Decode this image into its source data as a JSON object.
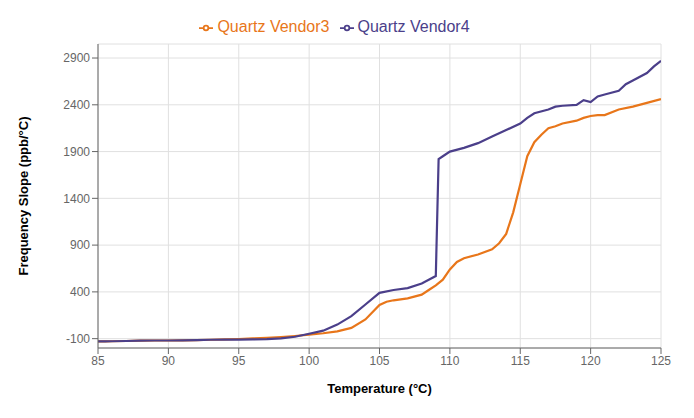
{
  "chart_data": {
    "type": "line",
    "xlabel": "Temperature (°C)",
    "ylabel": "Frequency Slope (ppb/°C)",
    "xlim": [
      85,
      125
    ],
    "ylim": [
      -200,
      3050
    ],
    "xticks": [
      85,
      90,
      95,
      100,
      105,
      110,
      115,
      120,
      125
    ],
    "yticks": [
      -100,
      400,
      900,
      1400,
      1900,
      2400,
      2900
    ],
    "grid": true,
    "legend": "top",
    "series": [
      {
        "name": "Quartz Vendor3",
        "color": "#E8761A",
        "x": [
          85.0,
          85.5,
          86.0,
          87.0,
          88.0,
          89.0,
          90.0,
          91.0,
          92.0,
          93.0,
          94.0,
          95.0,
          96.0,
          97.0,
          98.0,
          99.0,
          100.0,
          101.0,
          102.0,
          103.0,
          104.0,
          105.0,
          105.5,
          106.0,
          107.0,
          108.0,
          108.5,
          109.0,
          109.5,
          110.0,
          110.5,
          111.0,
          112.0,
          113.0,
          113.5,
          114.0,
          114.5,
          115.0,
          115.5,
          116.0,
          116.5,
          117.0,
          117.5,
          118.0,
          119.0,
          119.5,
          120.0,
          120.5,
          121.0,
          122.0,
          123.0,
          124.0,
          125.0
        ],
        "values": [
          -130,
          -130,
          -128,
          -125,
          -122,
          -120,
          -120,
          -118,
          -115,
          -112,
          -108,
          -104,
          -98,
          -92,
          -83,
          -72,
          -58,
          -42,
          -22,
          15,
          105,
          260,
          295,
          310,
          330,
          370,
          420,
          470,
          530,
          640,
          720,
          760,
          800,
          855,
          920,
          1020,
          1250,
          1550,
          1850,
          2000,
          2080,
          2150,
          2170,
          2200,
          2230,
          2260,
          2280,
          2290,
          2290,
          2350,
          2380,
          2420,
          2460
        ]
      },
      {
        "name": "Quartz Vendor4",
        "color": "#4B3F8A",
        "x": [
          85.0,
          85.5,
          86.0,
          87.0,
          88.0,
          89.0,
          90.0,
          91.0,
          92.0,
          93.0,
          94.0,
          94.5,
          95.0,
          96.0,
          97.0,
          98.0,
          99.0,
          100.0,
          101.0,
          102.0,
          103.0,
          104.0,
          105.0,
          106.0,
          107.0,
          108.0,
          108.5,
          109.0,
          109.2,
          109.5,
          110.0,
          111.0,
          112.0,
          113.0,
          114.0,
          115.0,
          115.5,
          116.0,
          117.0,
          117.5,
          118.0,
          119.0,
          119.5,
          120.0,
          120.5,
          121.0,
          122.0,
          122.5,
          123.0,
          124.0,
          124.5,
          125.0
        ],
        "values": [
          -130,
          -130,
          -128,
          -125,
          -122,
          -120,
          -120,
          -118,
          -115,
          -112,
          -110,
          -110,
          -110,
          -108,
          -105,
          -98,
          -80,
          -48,
          -15,
          50,
          140,
          265,
          390,
          420,
          440,
          490,
          530,
          570,
          1820,
          1850,
          1900,
          1940,
          1990,
          2060,
          2130,
          2200,
          2260,
          2310,
          2350,
          2380,
          2390,
          2400,
          2450,
          2430,
          2490,
          2510,
          2550,
          2620,
          2660,
          2740,
          2810,
          2870
        ]
      }
    ]
  }
}
